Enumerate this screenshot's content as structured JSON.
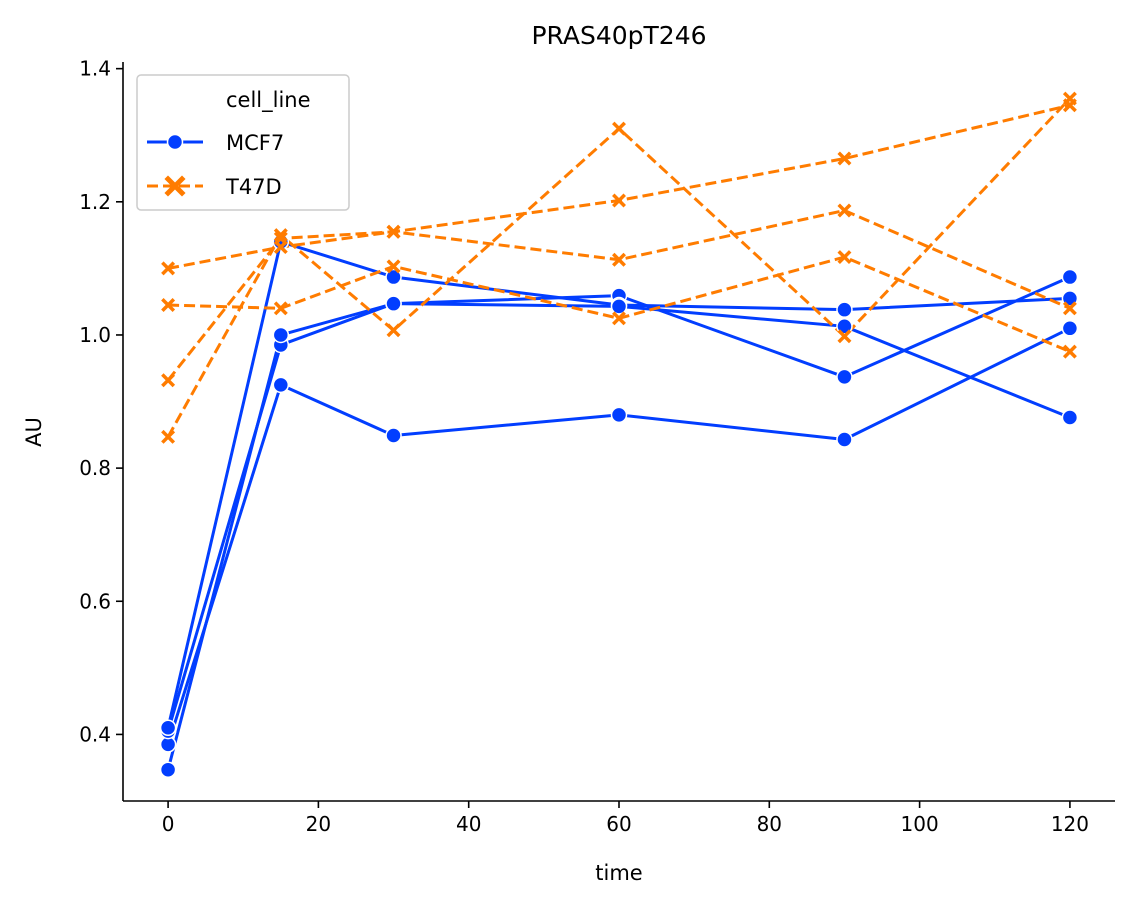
{
  "chart_data": {
    "type": "line",
    "title": "PRAS40pT246",
    "xlabel": "time",
    "ylabel": "AU",
    "xlim": [
      -6,
      126
    ],
    "ylim": [
      0.3,
      1.41
    ],
    "xticks": [
      0,
      20,
      40,
      60,
      80,
      100,
      120
    ],
    "yticks": [
      0.4,
      0.6,
      0.8,
      1.0,
      1.2,
      1.4
    ],
    "xtick_labels": [
      "0",
      "20",
      "40",
      "60",
      "80",
      "100",
      "120"
    ],
    "ytick_labels": [
      "0.4",
      "0.6",
      "0.8",
      "1.0",
      "1.2",
      "1.4"
    ],
    "x": [
      0,
      15,
      30,
      60,
      90,
      120
    ],
    "legend": {
      "title": "cell_line",
      "position": "top-left",
      "entries": [
        "MCF7",
        "T47D"
      ]
    },
    "colors": {
      "MCF7": "#023eff",
      "T47D": "#ff7c00"
    },
    "series": [
      {
        "group": "MCF7",
        "values": [
          0.385,
          0.925,
          0.849,
          0.88,
          0.843,
          1.01
        ]
      },
      {
        "group": "MCF7",
        "values": [
          0.405,
          0.985,
          1.047,
          1.059,
          0.937,
          1.087
        ]
      },
      {
        "group": "MCF7",
        "values": [
          0.41,
          1.14,
          1.087,
          1.045,
          1.038,
          1.055
        ]
      },
      {
        "group": "MCF7",
        "values": [
          0.347,
          1.0,
          1.047,
          1.043,
          1.013,
          0.876
        ]
      },
      {
        "group": "T47D",
        "values": [
          0.847,
          1.15,
          1.007,
          1.31,
          0.998,
          1.355
        ]
      },
      {
        "group": "T47D",
        "values": [
          0.932,
          1.145,
          1.155,
          1.113,
          1.187,
          1.04
        ]
      },
      {
        "group": "T47D",
        "values": [
          1.1,
          1.132,
          1.155,
          1.202,
          1.265,
          1.345
        ]
      },
      {
        "group": "T47D",
        "values": [
          1.045,
          1.04,
          1.103,
          1.025,
          1.117,
          0.975
        ]
      }
    ]
  }
}
